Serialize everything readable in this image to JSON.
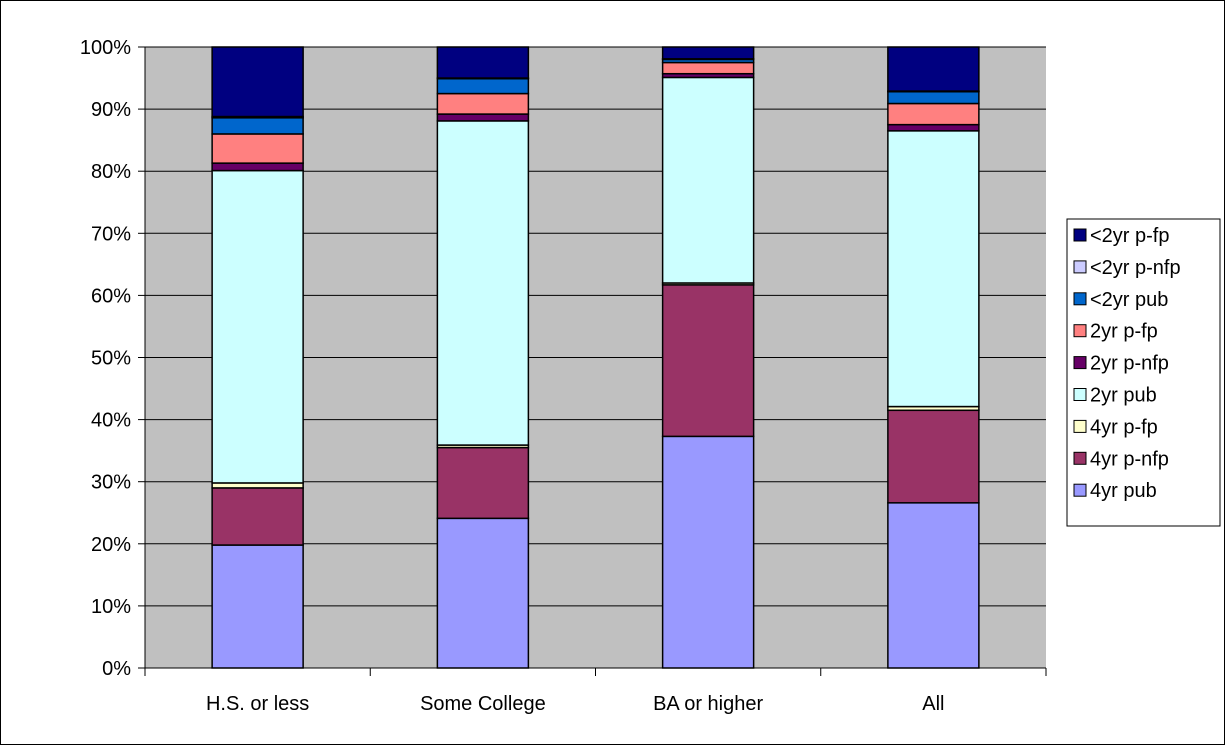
{
  "chart_data": {
    "type": "bar",
    "stacked": true,
    "normalized": true,
    "categories": [
      "H.S. or less",
      "Some College",
      "BA or higher",
      "All"
    ],
    "ylim": [
      0,
      100
    ],
    "yticks": [
      "0%",
      "10%",
      "20%",
      "30%",
      "40%",
      "50%",
      "60%",
      "70%",
      "80%",
      "90%",
      "100%"
    ],
    "grid": true,
    "plot_background": "#c0c0c0",
    "legend_position": "right",
    "series": [
      {
        "name": "4yr pub",
        "color": "#9999ff",
        "values": [
          19.8,
          24.1,
          37.3,
          26.6
        ]
      },
      {
        "name": "4yr p-nfp",
        "color": "#993366",
        "values": [
          9.2,
          11.4,
          24.4,
          14.9
        ]
      },
      {
        "name": "4yr p-fp",
        "color": "#ffffcc",
        "values": [
          0.8,
          0.4,
          0.3,
          0.6
        ]
      },
      {
        "name": "2yr pub",
        "color": "#ccffff",
        "values": [
          50.3,
          52.2,
          33.1,
          44.4
        ]
      },
      {
        "name": "2yr p-nfp",
        "color": "#660066",
        "values": [
          1.2,
          1.1,
          0.6,
          1.0
        ]
      },
      {
        "name": "2yr p-fp",
        "color": "#ff8080",
        "values": [
          4.7,
          3.3,
          1.8,
          3.4
        ]
      },
      {
        "name": "<2yr pub",
        "color": "#0066cc",
        "values": [
          2.6,
          2.4,
          0.5,
          1.9
        ]
      },
      {
        "name": "<2yr p-nfp",
        "color": "#ccccff",
        "values": [
          0.2,
          0.1,
          0.1,
          0.1
        ]
      },
      {
        "name": "<2yr p-fp",
        "color": "#000080",
        "values": [
          11.2,
          5.0,
          1.9,
          7.1
        ]
      }
    ]
  }
}
